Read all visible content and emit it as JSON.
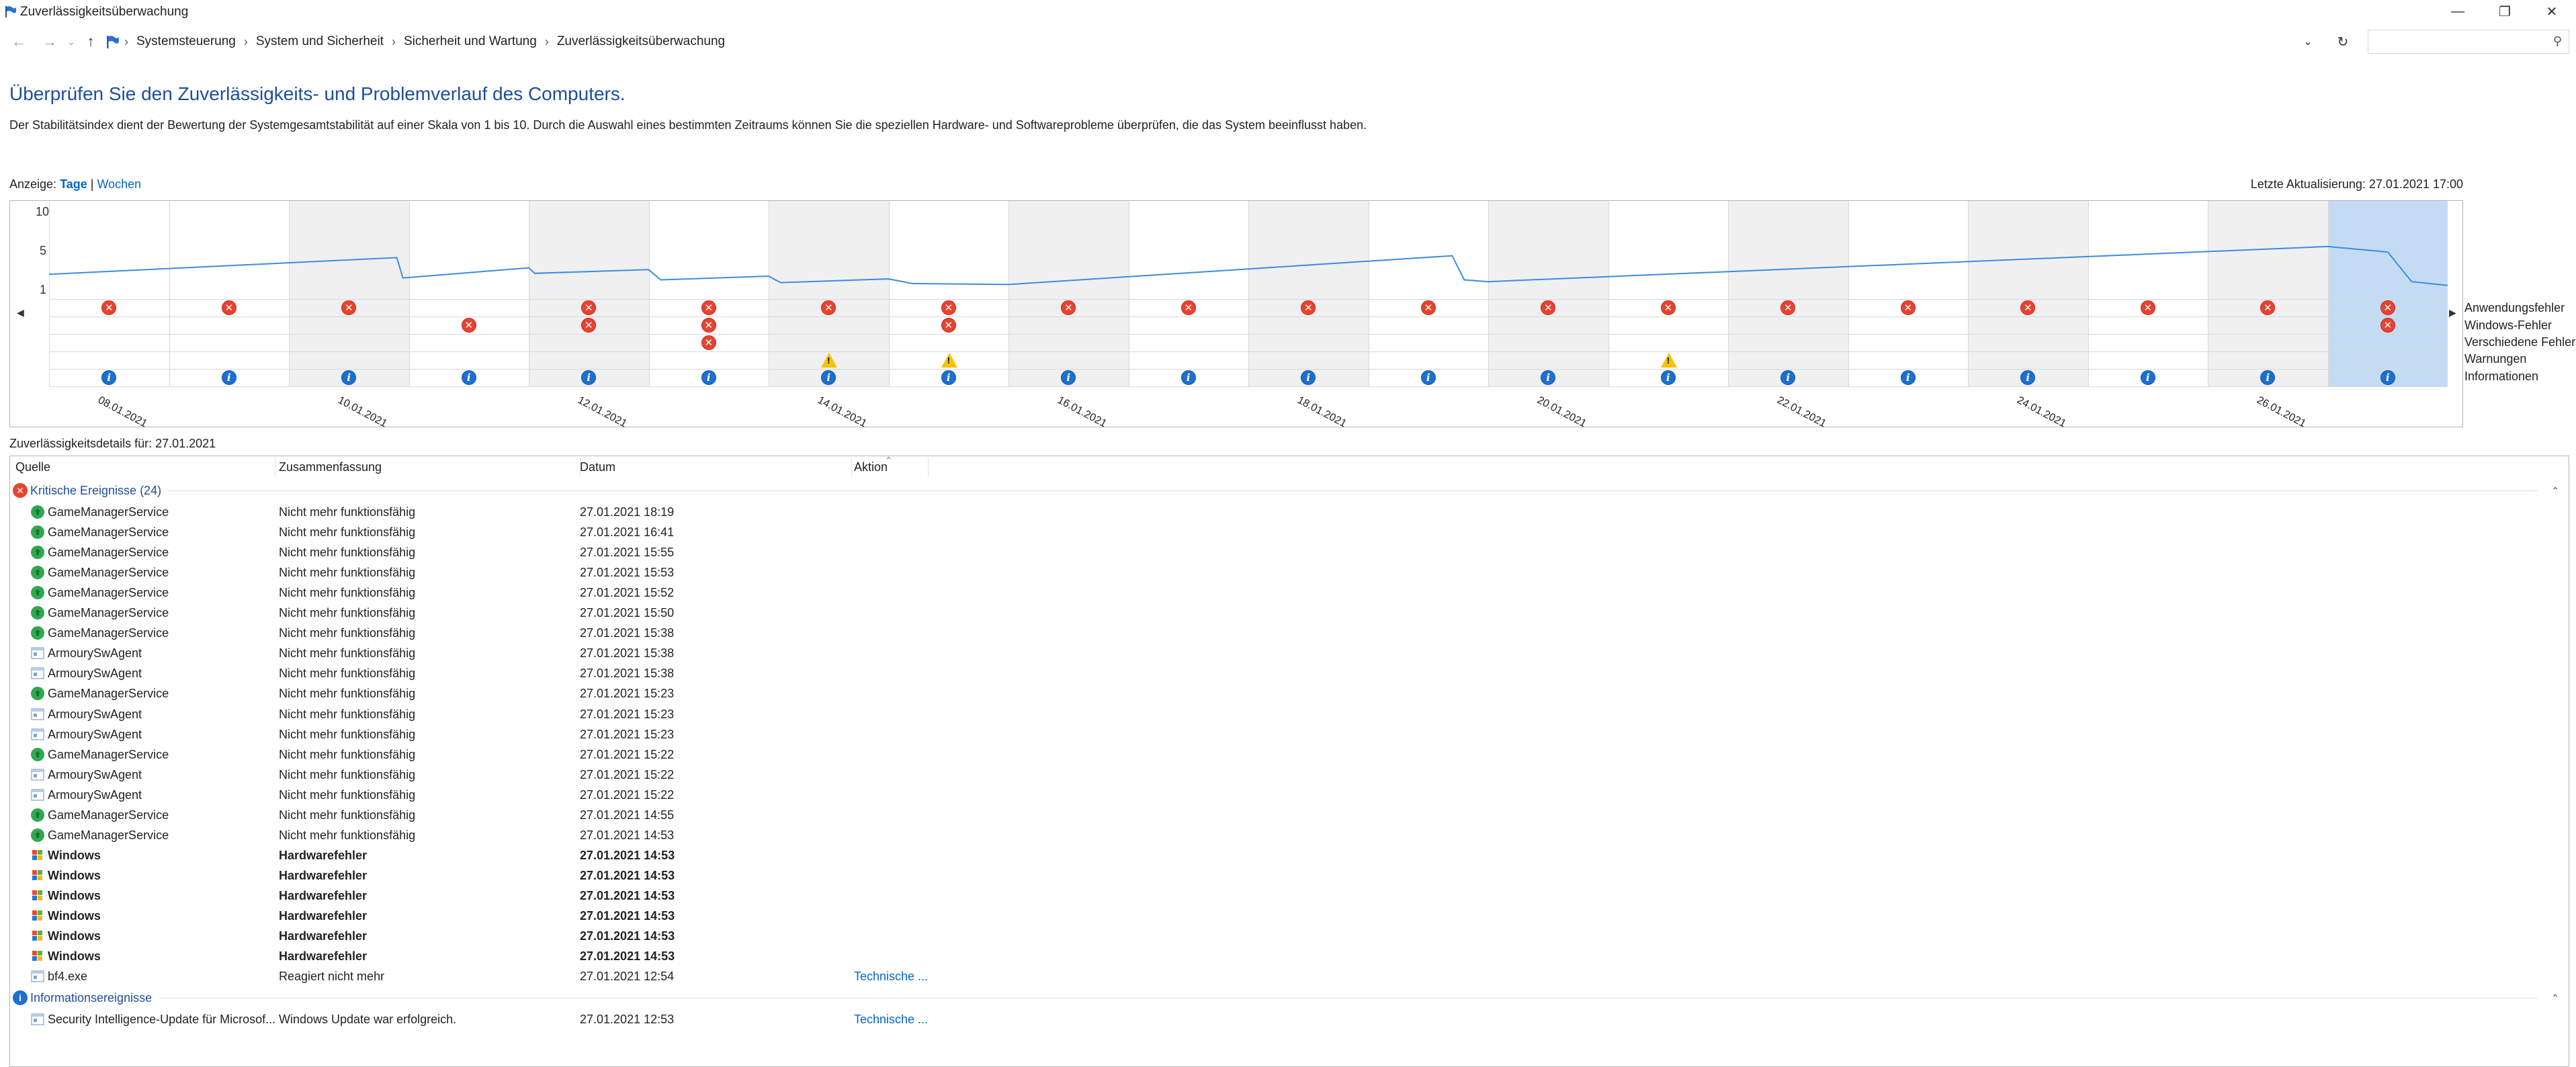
{
  "window": {
    "title": "Zuverlässigkeitsüberwachung"
  },
  "breadcrumb": [
    "Systemsteuerung",
    "System und Sicherheit",
    "Sicherheit und Wartung",
    "Zuverlässigkeitsüberwachung"
  ],
  "heading": "Überprüfen Sie den Zuverlässigkeits- und Problemverlauf des Computers.",
  "description": "Der Stabilitätsindex dient der Bewertung der Systemgesamtstabilität auf einer Skala von 1 bis 10. Durch die Auswahl eines bestimmten Zeitraums können Sie die speziellen Hardware- und Softwareprobleme überprüfen, die das System beeinflusst haben.",
  "view": {
    "label": "Anzeige:",
    "days": "Tage",
    "separator": "|",
    "weeks": "Wochen"
  },
  "last_update": "Letzte Aktualisierung: 27.01.2021 17:00",
  "chart_data": {
    "type": "line",
    "y_ticks": [
      "10",
      "5",
      "1"
    ],
    "ylim": [
      1,
      10
    ],
    "x_labels": [
      "08.01.2021",
      "10.01.2021",
      "12.01.2021",
      "14.01.2021",
      "16.01.2021",
      "18.01.2021",
      "20.01.2021",
      "22.01.2021",
      "24.01.2021",
      "26.01.2021"
    ],
    "days": [
      "08.01.2021",
      "09.01.2021",
      "10.01.2021",
      "11.01.2021",
      "12.01.2021",
      "13.01.2021",
      "14.01.2021",
      "15.01.2021",
      "16.01.2021",
      "17.01.2021",
      "18.01.2021",
      "19.01.2021",
      "20.01.2021",
      "21.01.2021",
      "22.01.2021",
      "23.01.2021",
      "24.01.2021",
      "25.01.2021",
      "26.01.2021",
      "27.01.2021"
    ],
    "selected_day": "27.01.2021",
    "stability_index": [
      [
        0,
        2.8
      ],
      [
        2.9,
        4.6
      ],
      [
        2.95,
        2.4
      ],
      [
        4.0,
        3.6
      ],
      [
        4.05,
        2.8
      ],
      [
        5.0,
        3.3
      ],
      [
        5.1,
        2.2
      ],
      [
        6.0,
        2.6
      ],
      [
        6.1,
        1.9
      ],
      [
        7.0,
        2.3
      ],
      [
        7.2,
        1.8
      ],
      [
        8.0,
        1.7
      ],
      [
        11.7,
        4.8
      ],
      [
        11.8,
        2.2
      ],
      [
        20.0,
        1.6
      ],
      [
        12.0,
        2.0
      ],
      [
        19.0,
        5.8
      ],
      [
        19.5,
        5.2
      ],
      [
        19.7,
        2.0
      ]
    ],
    "event_rows": [
      "Anwendungsfehler",
      "Windows-Fehler",
      "Verschiedene Fehler",
      "Warnungen",
      "Informationen"
    ],
    "application_failures": [
      1,
      1,
      1,
      0,
      1,
      1,
      1,
      1,
      1,
      1,
      1,
      1,
      1,
      1,
      1,
      1,
      1,
      1,
      1,
      1
    ],
    "windows_failures": [
      0,
      0,
      0,
      1,
      1,
      1,
      0,
      1,
      0,
      0,
      0,
      0,
      0,
      0,
      0,
      0,
      0,
      0,
      0,
      1
    ],
    "misc_failures": [
      0,
      0,
      0,
      0,
      0,
      1,
      0,
      0,
      0,
      0,
      0,
      0,
      0,
      0,
      0,
      0,
      0,
      0,
      0,
      0
    ],
    "warnings": [
      0,
      0,
      0,
      0,
      0,
      0,
      1,
      1,
      0,
      0,
      0,
      0,
      0,
      1,
      0,
      0,
      0,
      0,
      0,
      0
    ],
    "information": [
      1,
      1,
      1,
      1,
      1,
      1,
      1,
      1,
      1,
      1,
      1,
      1,
      1,
      1,
      1,
      1,
      1,
      1,
      1,
      1
    ]
  },
  "details": {
    "label": "Zuverlässigkeitsdetails für: 27.01.2021",
    "columns": [
      "Quelle",
      "Zusammenfassung",
      "Datum",
      "Aktion"
    ],
    "critical_group": "Kritische Ereignisse (24)",
    "critical": [
      {
        "icon": "green",
        "source": "GameManagerService",
        "summary": "Nicht mehr funktionsfähig",
        "date": "27.01.2021 18:19",
        "action": ""
      },
      {
        "icon": "green",
        "source": "GameManagerService",
        "summary": "Nicht mehr funktionsfähig",
        "date": "27.01.2021 16:41",
        "action": ""
      },
      {
        "icon": "green",
        "source": "GameManagerService",
        "summary": "Nicht mehr funktionsfähig",
        "date": "27.01.2021 15:55",
        "action": ""
      },
      {
        "icon": "green",
        "source": "GameManagerService",
        "summary": "Nicht mehr funktionsfähig",
        "date": "27.01.2021 15:53",
        "action": ""
      },
      {
        "icon": "green",
        "source": "GameManagerService",
        "summary": "Nicht mehr funktionsfähig",
        "date": "27.01.2021 15:52",
        "action": ""
      },
      {
        "icon": "green",
        "source": "GameManagerService",
        "summary": "Nicht mehr funktionsfähig",
        "date": "27.01.2021 15:50",
        "action": ""
      },
      {
        "icon": "green",
        "source": "GameManagerService",
        "summary": "Nicht mehr funktionsfähig",
        "date": "27.01.2021 15:38",
        "action": ""
      },
      {
        "icon": "app",
        "source": "ArmourySwAgent",
        "summary": "Nicht mehr funktionsfähig",
        "date": "27.01.2021 15:38",
        "action": ""
      },
      {
        "icon": "app",
        "source": "ArmourySwAgent",
        "summary": "Nicht mehr funktionsfähig",
        "date": "27.01.2021 15:38",
        "action": ""
      },
      {
        "icon": "green",
        "source": "GameManagerService",
        "summary": "Nicht mehr funktionsfähig",
        "date": "27.01.2021 15:23",
        "action": ""
      },
      {
        "icon": "app",
        "source": "ArmourySwAgent",
        "summary": "Nicht mehr funktionsfähig",
        "date": "27.01.2021 15:23",
        "action": ""
      },
      {
        "icon": "app",
        "source": "ArmourySwAgent",
        "summary": "Nicht mehr funktionsfähig",
        "date": "27.01.2021 15:23",
        "action": ""
      },
      {
        "icon": "green",
        "source": "GameManagerService",
        "summary": "Nicht mehr funktionsfähig",
        "date": "27.01.2021 15:22",
        "action": ""
      },
      {
        "icon": "app",
        "source": "ArmourySwAgent",
        "summary": "Nicht mehr funktionsfähig",
        "date": "27.01.2021 15:22",
        "action": ""
      },
      {
        "icon": "app",
        "source": "ArmourySwAgent",
        "summary": "Nicht mehr funktionsfähig",
        "date": "27.01.2021 15:22",
        "action": ""
      },
      {
        "icon": "green",
        "source": "GameManagerService",
        "summary": "Nicht mehr funktionsfähig",
        "date": "27.01.2021 14:55",
        "action": ""
      },
      {
        "icon": "green",
        "source": "GameManagerService",
        "summary": "Nicht mehr funktionsfähig",
        "date": "27.01.2021 14:53",
        "action": ""
      },
      {
        "icon": "windows",
        "bold": true,
        "source": "Windows",
        "summary": "Hardwarefehler",
        "date": "27.01.2021 14:53",
        "action": ""
      },
      {
        "icon": "windows",
        "bold": true,
        "source": "Windows",
        "summary": "Hardwarefehler",
        "date": "27.01.2021 14:53",
        "action": ""
      },
      {
        "icon": "windows",
        "bold": true,
        "source": "Windows",
        "summary": "Hardwarefehler",
        "date": "27.01.2021 14:53",
        "action": ""
      },
      {
        "icon": "windows",
        "bold": true,
        "source": "Windows",
        "summary": "Hardwarefehler",
        "date": "27.01.2021 14:53",
        "action": ""
      },
      {
        "icon": "windows",
        "bold": true,
        "source": "Windows",
        "summary": "Hardwarefehler",
        "date": "27.01.2021 14:53",
        "action": ""
      },
      {
        "icon": "windows",
        "bold": true,
        "source": "Windows",
        "summary": "Hardwarefehler",
        "date": "27.01.2021 14:53",
        "action": ""
      },
      {
        "icon": "app",
        "source": "bf4.exe",
        "summary": "Reagiert nicht mehr",
        "date": "27.01.2021 12:54",
        "action": "Technische ..."
      }
    ],
    "info_group": "Informationsereignisse",
    "info": [
      {
        "icon": "app",
        "source": "Security Intelligence-Update für Microsof...",
        "summary": "Windows Update war erfolgreich.",
        "date": "27.01.2021 12:53",
        "action": "Technische ..."
      }
    ]
  }
}
